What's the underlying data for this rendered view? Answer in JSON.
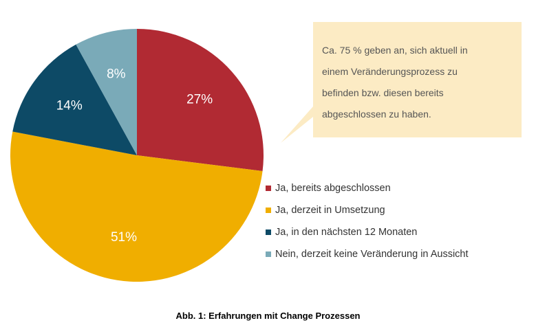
{
  "chart_data": {
    "type": "pie",
    "categories": [
      "Ja, bereits abgeschlossen",
      "Ja, derzeit in Umsetzung",
      "Ja, in den nächsten 12 Monaten",
      "Nein, derzeit keine Veränderung in Aussicht"
    ],
    "values": [
      27,
      51,
      14,
      8
    ],
    "value_labels": [
      "27%",
      "51%",
      "14%",
      "8%"
    ],
    "colors": [
      "#b12a33",
      "#f0ae00",
      "#0d4a66",
      "#7aaab8"
    ],
    "legend_placement": "right",
    "start": "12 o'clock, clockwise"
  },
  "callout": {
    "lines": [
      "Ca. 75 % geben an, sich aktuell in",
      "einem Veränderungsprozess zu",
      "befinden bzw. diesen bereits",
      "abgeschlossen zu haben."
    ],
    "background_color": "#fcebc4"
  },
  "caption": "Abb. 1: Erfahrungen mit Change Prozessen"
}
